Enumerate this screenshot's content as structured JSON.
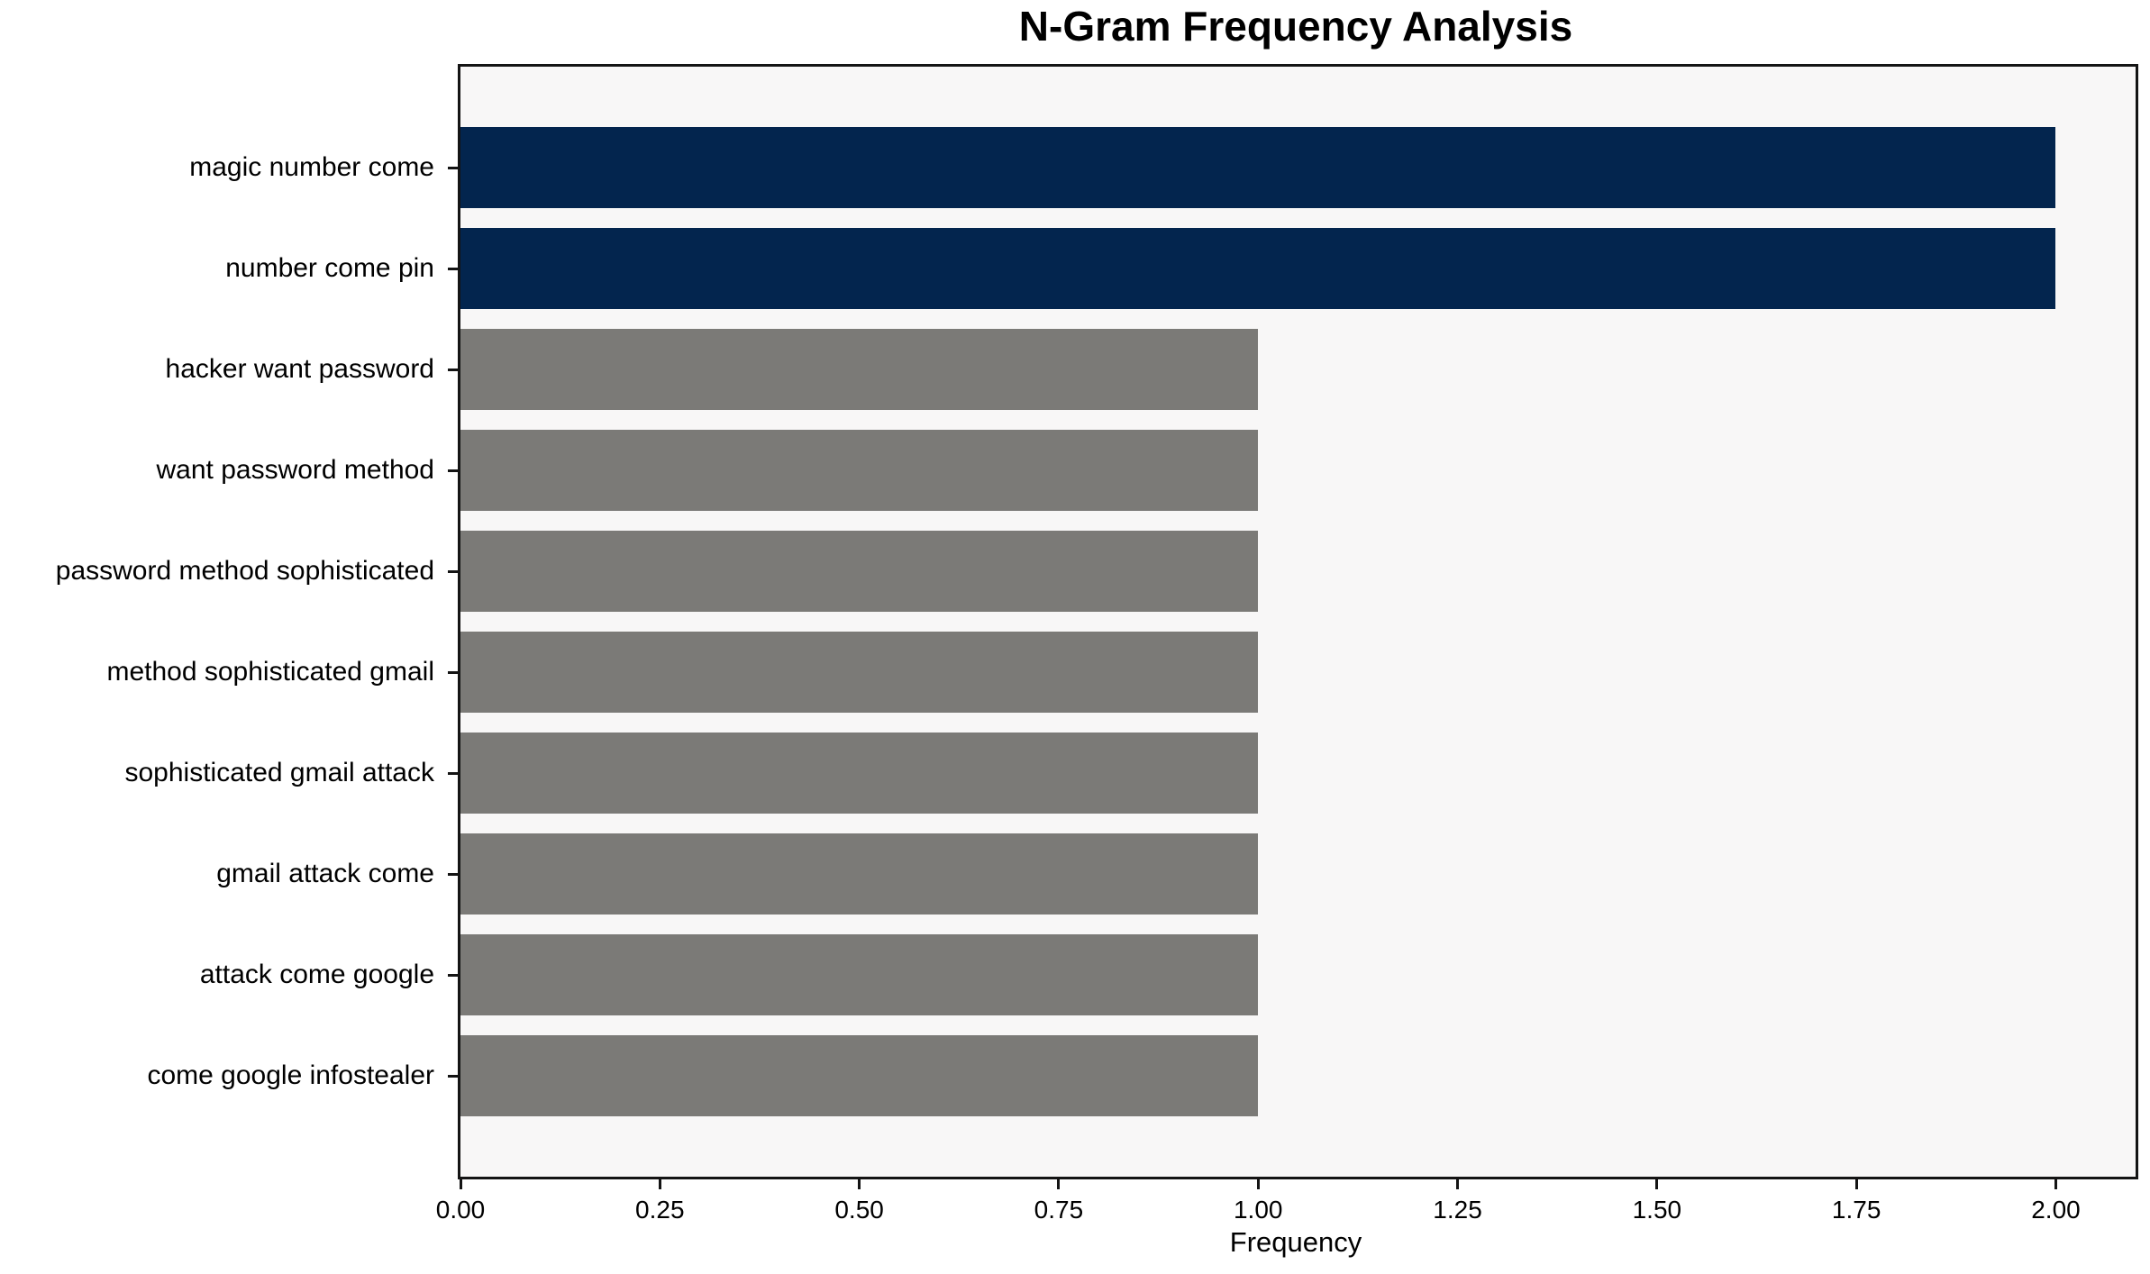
{
  "figure": {
    "background": "#ffffff"
  },
  "chart_data": {
    "type": "bar",
    "orientation": "horizontal",
    "title": "N-Gram Frequency Analysis",
    "xlabel": "Frequency",
    "ylabel": "",
    "categories": [
      "magic number come",
      "number come pin",
      "hacker want password",
      "want password method",
      "password method sophisticated",
      "method sophisticated gmail",
      "sophisticated gmail attack",
      "gmail attack come",
      "attack come google",
      "come google infostealer"
    ],
    "values": [
      2,
      2,
      1,
      1,
      1,
      1,
      1,
      1,
      1,
      1
    ],
    "bar_colors": [
      "#03254e",
      "#03254e",
      "#7b7a77",
      "#7b7a77",
      "#7b7a77",
      "#7b7a77",
      "#7b7a77",
      "#7b7a77",
      "#7b7a77",
      "#7b7a77"
    ],
    "xlim": [
      0,
      2.1
    ],
    "xticks": [
      0,
      0.25,
      0.5,
      0.75,
      1.0,
      1.25,
      1.5,
      1.75,
      2.0
    ],
    "xtick_labels": [
      "0.00",
      "0.25",
      "0.50",
      "0.75",
      "1.00",
      "1.25",
      "1.50",
      "1.75",
      "2.00"
    ],
    "grid": false,
    "legend": null,
    "colors": {
      "highlight": "#03254e",
      "default": "#7b7a77",
      "plot_background": "#f8f7f7",
      "spine": "#141414",
      "text": "#000000"
    }
  }
}
